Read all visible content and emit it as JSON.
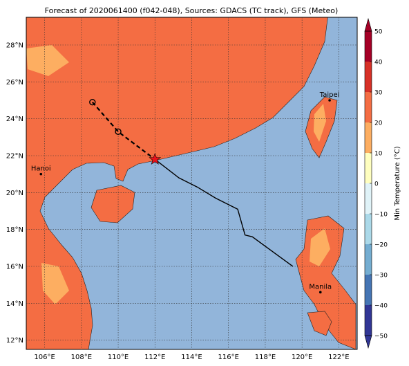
{
  "map": {
    "title": "Forecast of 2020061400 (f042-048), Sources: GDACS (TC track), GFS (Meteo)",
    "xlim": [
      105,
      123
    ],
    "ylim": [
      11.5,
      29.5
    ],
    "xticks": [
      {
        "value": 106,
        "label": "106°E"
      },
      {
        "value": 108,
        "label": "108°E"
      },
      {
        "value": 110,
        "label": "110°E"
      },
      {
        "value": 112,
        "label": "112°E"
      },
      {
        "value": 114,
        "label": "114°E"
      },
      {
        "value": 116,
        "label": "116°E"
      },
      {
        "value": 118,
        "label": "118°E"
      },
      {
        "value": 120,
        "label": "120°E"
      },
      {
        "value": 122,
        "label": "122°E"
      }
    ],
    "yticks": [
      {
        "value": 12,
        "label": "12°N"
      },
      {
        "value": 14,
        "label": "14°N"
      },
      {
        "value": 16,
        "label": "16°N"
      },
      {
        "value": 18,
        "label": "18°N"
      },
      {
        "value": 20,
        "label": "20°N"
      },
      {
        "value": 22,
        "label": "22°N"
      },
      {
        "value": 24,
        "label": "24°N"
      },
      {
        "value": 26,
        "label": "26°N"
      },
      {
        "value": 28,
        "label": "28°N"
      }
    ],
    "cities": [
      {
        "name": "Taipei",
        "lon": 121.5,
        "lat": 25.0
      },
      {
        "name": "Hanoi",
        "lon": 105.8,
        "lat": 21.0
      },
      {
        "name": "Manila",
        "lon": 121.0,
        "lat": 14.6
      }
    ],
    "forecast_track": {
      "lon": [
        108.6,
        110.0,
        112.0
      ],
      "lat": [
        24.9,
        23.3,
        21.8
      ]
    },
    "past_track": {
      "lon": [
        112.0,
        113.3,
        114.3,
        115.3,
        116.5,
        116.9,
        117.3,
        119.5
      ],
      "lat": [
        21.8,
        20.8,
        20.3,
        19.7,
        19.1,
        17.7,
        17.6,
        16.0
      ]
    },
    "colorbar": {
      "label": "Min Temperature (°C)",
      "lim": [
        -50,
        50
      ],
      "ticks": [
        {
          "value": -50,
          "label": "−50"
        },
        {
          "value": -40,
          "label": "−40"
        },
        {
          "value": -30,
          "label": "−30"
        },
        {
          "value": -20,
          "label": "−20"
        },
        {
          "value": -10,
          "label": "−10"
        },
        0,
        10,
        20,
        30,
        40,
        50
      ],
      "colors": [
        "#313695",
        "#4575b4",
        "#74add1",
        "#abd9e9",
        "#e0f3f8",
        "#ffffbf",
        "#fdae61",
        "#f46d43",
        "#d73027",
        "#a50026"
      ]
    }
  }
}
